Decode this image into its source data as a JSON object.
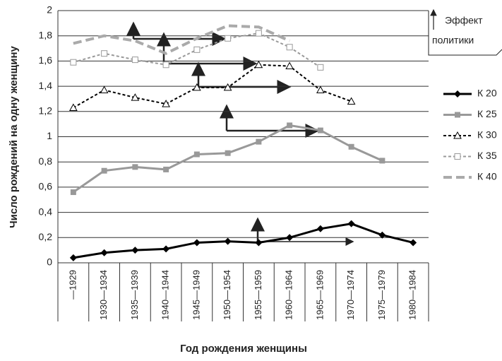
{
  "chart_data": {
    "type": "line",
    "y_label": "Число рождений на одну женщину",
    "x_label": "Год рождения женщины",
    "annotation": [
      "Эффект",
      "политики"
    ],
    "categories": [
      "—1929",
      "1930—1934",
      "1935—1939",
      "1940—1944",
      "1945—1949",
      "1950—1954",
      "1955—1959",
      "1960—1964",
      "1965—1969",
      "1970—1974",
      "1975—1979",
      "1980—1984"
    ],
    "series": [
      {
        "name": "К 20",
        "color": "#000000",
        "style": "solid",
        "marker": "diamond",
        "values": [
          0.04,
          0.08,
          0.1,
          0.11,
          0.16,
          0.17,
          0.16,
          0.2,
          0.27,
          0.31,
          0.22,
          0.16
        ]
      },
      {
        "name": "К 25",
        "color": "#999999",
        "style": "solid",
        "marker": "square",
        "values": [
          0.56,
          0.73,
          0.76,
          0.74,
          0.86,
          0.87,
          0.96,
          1.09,
          1.05,
          0.92,
          0.81,
          null
        ]
      },
      {
        "name": "К 30",
        "color": "#000000",
        "style": "dotted",
        "marker": "triangle",
        "values": [
          1.23,
          1.37,
          1.31,
          1.26,
          1.39,
          1.39,
          1.57,
          1.56,
          1.37,
          1.28,
          null,
          null
        ]
      },
      {
        "name": "К 35",
        "color": "#999999",
        "style": "dotted",
        "marker": "open-square",
        "values": [
          1.59,
          1.66,
          1.61,
          1.57,
          1.69,
          1.78,
          1.82,
          1.71,
          1.55,
          null,
          null,
          null
        ]
      },
      {
        "name": "К 40",
        "color": "#aaaaaa",
        "style": "dashed",
        "marker": "none",
        "values": [
          1.74,
          1.8,
          1.76,
          1.66,
          1.78,
          1.88,
          1.87,
          1.76,
          null,
          null,
          null,
          null
        ]
      }
    ],
    "ylim": [
      0,
      2
    ],
    "yticks": [
      0,
      {
        "value": 0.2,
        "label": "0,2"
      },
      {
        "value": 0.4,
        "label": "0,4"
      },
      {
        "value": 0.6,
        "label": "0,6"
      },
      {
        "value": 0.8,
        "label": "0,8"
      },
      1,
      {
        "value": 1.2,
        "label": "1,2"
      },
      {
        "value": 1.4,
        "label": "1,4"
      },
      {
        "value": 1.6,
        "label": "1,6"
      },
      {
        "value": 1.8,
        "label": "1,8"
      },
      2
    ],
    "grid": true,
    "legend": "right"
  }
}
